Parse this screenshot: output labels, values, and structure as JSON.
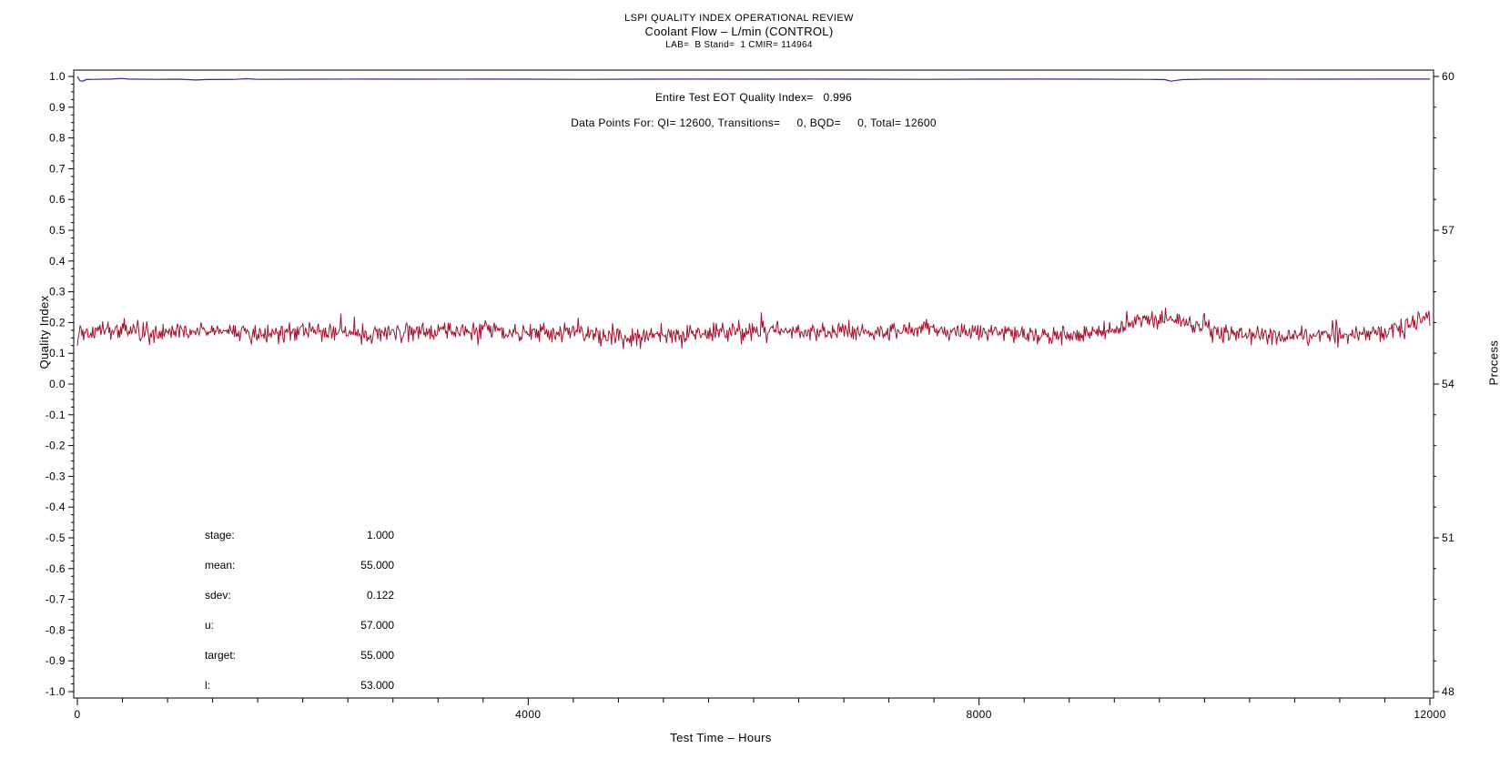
{
  "titles": {
    "line1": "LSPI QUALITY INDEX OPERATIONAL REVIEW",
    "line2": "Coolant Flow – L/min (CONTROL)",
    "line3": "LAB=  B Stand=  1 CMIR= 114964"
  },
  "annotations": {
    "line1": "Entire Test EOT Quality Index=   0.996",
    "line2": "Data Points For: QI= 12600, Transitions=     0, BQD=     0, Total= 12600"
  },
  "stats": {
    "rows": [
      {
        "label": "stage:",
        "value": "1.000"
      },
      {
        "label": "mean:",
        "value": "55.000"
      },
      {
        "label": "sdev:",
        "value": "0.122"
      },
      {
        "label": "u:",
        "value": "57.000"
      },
      {
        "label": "target:",
        "value": "55.000"
      },
      {
        "label": "l:",
        "value": "53.000"
      }
    ]
  },
  "chart_data": {
    "type": "line",
    "title": "LSPI QUALITY INDEX OPERATIONAL REVIEW",
    "subtitle": "Coolant Flow – L/min (CONTROL)",
    "grid": false,
    "legend": "none",
    "eot_quality_index": 0.996,
    "data_points": {
      "qi": 12600,
      "transitions": 0,
      "bqd": 0,
      "total": 12600
    },
    "stats": {
      "stage": 1.0,
      "mean": 55.0,
      "sdev": 0.122,
      "u": 57.0,
      "target": 55.0,
      "l": 53.0
    },
    "x_axis": {
      "label": "Test Time – Hours",
      "min": 0,
      "max": 12000,
      "major_ticks": [
        0,
        4000,
        8000,
        12000
      ],
      "tick_labels": [
        "0",
        "4000",
        "8000",
        "12000"
      ],
      "minor_step": 400
    },
    "y_left": {
      "label": "Quality Index",
      "min": -1.0,
      "max": 1.0,
      "tick_step": 0.1,
      "minor_per_major": 3,
      "tick_labels": [
        "1.0",
        "0.9",
        "0.8",
        "0.7",
        "0.6",
        "0.5",
        "0.4",
        "0.3",
        "0.2",
        "0.1",
        "0.0",
        "-0.1",
        "-0.2",
        "-0.3",
        "-0.4",
        "-0.5",
        "-0.6",
        "-0.7",
        "-0.8",
        "-0.9",
        "-1.0"
      ]
    },
    "y_right": {
      "label": "Process",
      "min": 48,
      "max": 60,
      "minor_per_major": 4,
      "major_ticks": [
        60,
        57,
        54,
        51,
        48
      ],
      "tick_labels": [
        "60",
        "57",
        "54",
        "51",
        "48"
      ]
    },
    "series": [
      {
        "name": "Quality Index",
        "axis": "left",
        "color": "#2C2C96",
        "style": "line",
        "points": [
          [
            0,
            0.9995
          ],
          [
            25,
            0.9855
          ],
          [
            50,
            0.985
          ],
          [
            80,
            0.99
          ],
          [
            150,
            0.9905
          ],
          [
            300,
            0.9915
          ],
          [
            400,
            0.9935
          ],
          [
            450,
            0.9915
          ],
          [
            550,
            0.991
          ],
          [
            700,
            0.9905
          ],
          [
            900,
            0.991
          ],
          [
            1050,
            0.9885
          ],
          [
            1150,
            0.99
          ],
          [
            1400,
            0.9905
          ],
          [
            1500,
            0.9925
          ],
          [
            1600,
            0.9905
          ],
          [
            2000,
            0.991
          ],
          [
            2500,
            0.9915
          ],
          [
            3000,
            0.991
          ],
          [
            3500,
            0.9915
          ],
          [
            4000,
            0.991
          ],
          [
            4500,
            0.9905
          ],
          [
            5000,
            0.991
          ],
          [
            5500,
            0.9915
          ],
          [
            6000,
            0.991
          ],
          [
            6500,
            0.9915
          ],
          [
            7000,
            0.991
          ],
          [
            7500,
            0.9905
          ],
          [
            8000,
            0.991
          ],
          [
            8500,
            0.9915
          ],
          [
            9000,
            0.991
          ],
          [
            9500,
            0.9905
          ],
          [
            9650,
            0.9895
          ],
          [
            9700,
            0.9845
          ],
          [
            9800,
            0.9895
          ],
          [
            10000,
            0.991
          ],
          [
            10500,
            0.9915
          ],
          [
            11000,
            0.991
          ],
          [
            11500,
            0.9915
          ],
          [
            12000,
            0.9915
          ]
        ]
      },
      {
        "name": "Process (Coolant Flow L/min)",
        "axis": "right",
        "color": "#A5122E",
        "style": "noisy-line",
        "mean": 55.0,
        "sdev": 0.122,
        "n_points": 12600,
        "render_points": 1500,
        "noise_sd": 0.095,
        "seed": 987241,
        "wander": [
          [
            0,
            -0.1
          ],
          [
            120,
            0.02
          ],
          [
            300,
            0.06
          ],
          [
            600,
            -0.02
          ],
          [
            900,
            0.03
          ],
          [
            1200,
            0.05
          ],
          [
            1500,
            -0.03
          ],
          [
            1800,
            0.02
          ],
          [
            2200,
            0.04
          ],
          [
            2600,
            -0.02
          ],
          [
            3000,
            0.02
          ],
          [
            3400,
            0.05
          ],
          [
            3800,
            0.0
          ],
          [
            4200,
            0.03
          ],
          [
            4600,
            -0.04
          ],
          [
            5000,
            -0.1
          ],
          [
            5300,
            -0.02
          ],
          [
            5700,
            0.02
          ],
          [
            6100,
            0.04
          ],
          [
            6500,
            0.02
          ],
          [
            6900,
            0.05
          ],
          [
            7300,
            0.03
          ],
          [
            7700,
            0.05
          ],
          [
            8100,
            0.02
          ],
          [
            8500,
            -0.06
          ],
          [
            8700,
            -0.1
          ],
          [
            8900,
            0.0
          ],
          [
            9200,
            0.05
          ],
          [
            9500,
            0.26
          ],
          [
            9750,
            0.3
          ],
          [
            9900,
            0.16
          ],
          [
            10150,
            0.0
          ],
          [
            10400,
            -0.03
          ],
          [
            10700,
            -0.07
          ],
          [
            11000,
            -0.05
          ],
          [
            11300,
            -0.02
          ],
          [
            11600,
            0.02
          ],
          [
            11800,
            0.1
          ],
          [
            11950,
            0.28
          ],
          [
            12000,
            0.3
          ]
        ]
      }
    ]
  }
}
